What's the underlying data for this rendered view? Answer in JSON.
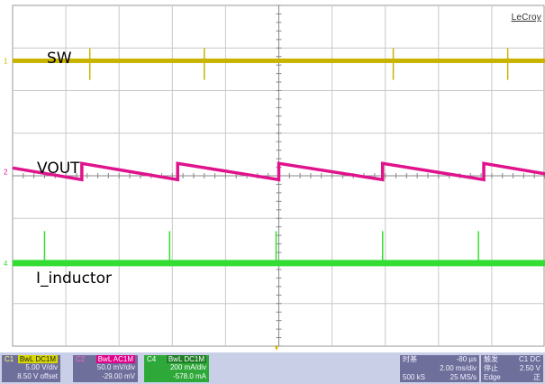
{
  "brand": "LeCroy",
  "chart_data": {
    "type": "line",
    "grid": {
      "x_divs": 10,
      "y_divs": 8,
      "visible": true
    },
    "series": [
      {
        "name": "SW",
        "label": "SW",
        "color": "#c8b400",
        "marker": "1",
        "level_divs": 1.3,
        "spike_x_divs": [
          1.45,
          3.6,
          7.15,
          9.3
        ],
        "spike_depth_divs": 0.45
      },
      {
        "name": "VOUT",
        "label": "VOUT",
        "color": "#e0138c",
        "marker": "2",
        "level_divs": 3.9,
        "sawtooth_jumps_x_divs": [
          1.3,
          3.1,
          5.0,
          6.95,
          8.85
        ],
        "ramp_divs": 0.38
      },
      {
        "name": "I_inductor",
        "label": "I_inductor",
        "color": "#33dd33",
        "marker": "4",
        "level_divs": 6.05,
        "spike_x_divs": [
          0.6,
          2.95,
          4.95,
          6.95,
          8.75
        ],
        "spike_height_divs": 0.75
      }
    ],
    "trigger_x_divs": 5.0
  },
  "status": {
    "c1": {
      "name": "C1",
      "tag": "BwL DC1M",
      "scale": "5.00 V/div",
      "offset": "8.50 V offset"
    },
    "c2": {
      "name": "C2",
      "tag": "BwL AC1M",
      "scale": "50.0 mV/div",
      "offset": "-29.00 mV"
    },
    "c4": {
      "name": "C4",
      "tag": "BwL DC1M",
      "scale": "200 mA/div",
      "offset": "-578.0 mA"
    },
    "timebase": {
      "title": "时基",
      "delay": "-80 µs",
      "tdiv": "2.00 ms/div",
      "samples": "500 kS",
      "rate": "25 MS/s"
    },
    "trigger": {
      "title": "触发",
      "chan": "C1 DC",
      "mode": "停止",
      "level": "2.50 V",
      "type": "Edge",
      "slope": "正"
    }
  }
}
